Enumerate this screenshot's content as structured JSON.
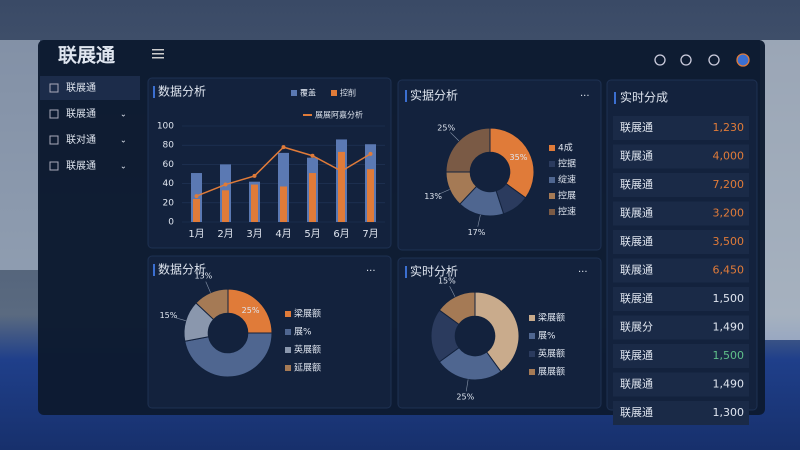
{
  "app": {
    "title": "联展通"
  },
  "sidebar": {
    "items": [
      "联展通",
      "联展通",
      "联对通",
      "联展通"
    ]
  },
  "chart_data": [
    {
      "type": "bar",
      "title": "数据分析",
      "categories": [
        "1月",
        "2月",
        "3月",
        "4月",
        "5月",
        "6月",
        "7月"
      ],
      "ylim": [
        0,
        100
      ],
      "yticks": [
        0,
        20,
        40,
        60,
        80,
        100
      ],
      "series": [
        {
          "name": "覆盖",
          "color": "#5b79b3",
          "values": [
            51,
            60,
            42,
            72,
            67,
            86,
            81
          ]
        },
        {
          "name": "控削",
          "color": "#e07b39",
          "values": [
            24,
            33,
            39,
            37,
            51,
            73,
            55
          ]
        },
        {
          "name": "展展阿嘉分析",
          "type": "line",
          "color": "#e07b39",
          "values": [
            27,
            39,
            48,
            78,
            69,
            53,
            71
          ]
        }
      ]
    },
    {
      "type": "pie",
      "title": "实据分析",
      "categories": [
        "4成",
        "控据",
        "绽速",
        "控展",
        "控速"
      ],
      "values": [
        35,
        10,
        17,
        13,
        25
      ],
      "value_labels": [
        "35%",
        null,
        "17%",
        "13%",
        "25%"
      ],
      "colors": [
        "#e07b39",
        "#2b3b5e",
        "#4f6690",
        "#a57a55",
        "#7a5a45"
      ]
    },
    {
      "type": "pie",
      "title": "数据分析",
      "categories": [
        "梁展额",
        "展%",
        "英展额",
        "延展额"
      ],
      "values": [
        25,
        47,
        15,
        13
      ],
      "value_labels": [
        "25%",
        null,
        "15%",
        "13%"
      ],
      "colors": [
        "#e07b39",
        "#4f6690",
        "#8a97ad",
        "#a57a55"
      ]
    },
    {
      "type": "pie",
      "title": "实时分析",
      "categories": [
        "梁展额",
        "展%",
        "英展额",
        "展展额"
      ],
      "values": [
        40,
        25,
        20,
        15
      ],
      "value_labels": [
        null,
        "25%",
        null,
        "15%"
      ],
      "colors": [
        "#c9ab8c",
        "#4f6690",
        "#2b3b5e",
        "#a57a55"
      ]
    }
  ],
  "realtime": {
    "title": "实时分成",
    "rows": [
      {
        "name": "联展通",
        "value": "1,230",
        "color": "#e07b39"
      },
      {
        "name": "联展通",
        "value": "4,000",
        "color": "#e07b39"
      },
      {
        "name": "联展通",
        "value": "7,200",
        "color": "#e07b39"
      },
      {
        "name": "联展通",
        "value": "3,200",
        "color": "#e07b39"
      },
      {
        "name": "联展通",
        "value": "3,500",
        "color": "#e07b39"
      },
      {
        "name": "联展通",
        "value": "6,450",
        "color": "#e07b39"
      },
      {
        "name": "联展通",
        "value": "1,500",
        "color": "#dfe5ef"
      },
      {
        "name": "联展分",
        "value": "1,490",
        "color": "#dfe5ef"
      },
      {
        "name": "联展通",
        "value": "1,500",
        "color": "#5fc08a"
      },
      {
        "name": "联展通",
        "value": "1,490",
        "color": "#dfe5ef"
      },
      {
        "name": "联展通",
        "value": "1,300",
        "color": "#dfe5ef"
      }
    ]
  }
}
